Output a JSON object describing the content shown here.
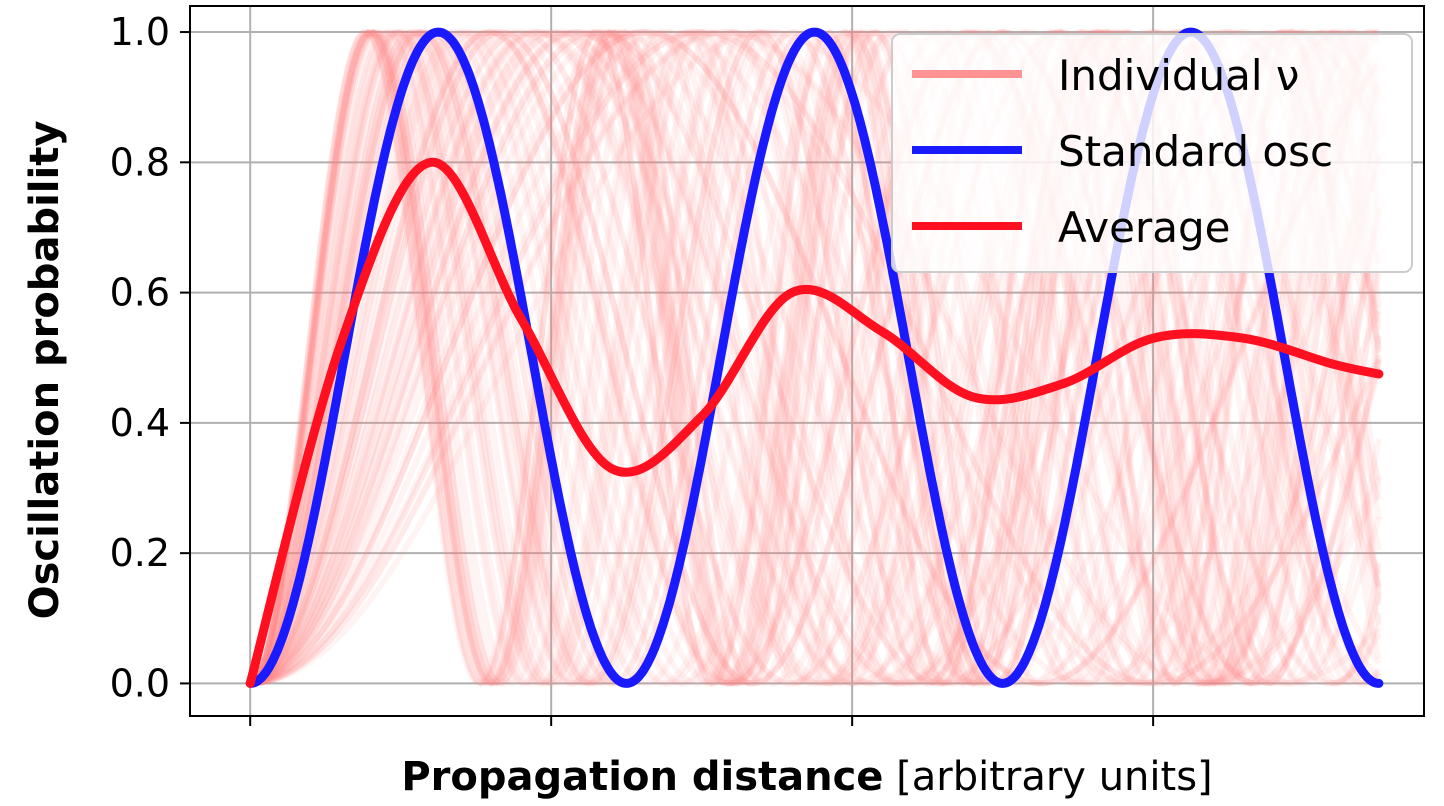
{
  "chart_data": {
    "type": "line",
    "xlabel_bold": "Propagation distance",
    "xlabel_rest": " [arbitrary units]",
    "ylabel": "Oscillation probability",
    "xlim": [
      -0.2,
      3.9
    ],
    "ylim": [
      -0.05,
      1.04
    ],
    "x_ticks": [
      0,
      1,
      2,
      3
    ],
    "y_ticks": [
      0.0,
      0.2,
      0.4,
      0.6,
      0.8,
      1.0
    ],
    "y_tick_labels": [
      "0.0",
      "0.2",
      "0.4",
      "0.6",
      "0.8",
      "1.0"
    ],
    "grid": true,
    "legend_position": "top-right",
    "individual_count": 90,
    "series": [
      {
        "name": "Individual ν",
        "color": "#ff8080",
        "description": "many faint curves with spread of oscillation frequencies"
      },
      {
        "name": "Standard osc",
        "color": "#1a1aff",
        "x": [
          0,
          0.625,
          1.25,
          1.875,
          2.5,
          3.125,
          3.75
        ],
        "y": [
          0,
          1.0,
          0.0,
          1.0,
          0.0,
          1.0,
          0.0
        ]
      },
      {
        "name": "Average",
        "color": "#ff1020",
        "x": [
          0,
          0.3,
          0.6,
          0.9,
          1.2,
          1.5,
          1.8,
          2.1,
          2.4,
          2.7,
          3.0,
          3.3,
          3.6,
          3.75
        ],
        "y": [
          0,
          0.52,
          0.8,
          0.56,
          0.33,
          0.41,
          0.6,
          0.54,
          0.44,
          0.46,
          0.53,
          0.53,
          0.49,
          0.475
        ]
      }
    ]
  }
}
